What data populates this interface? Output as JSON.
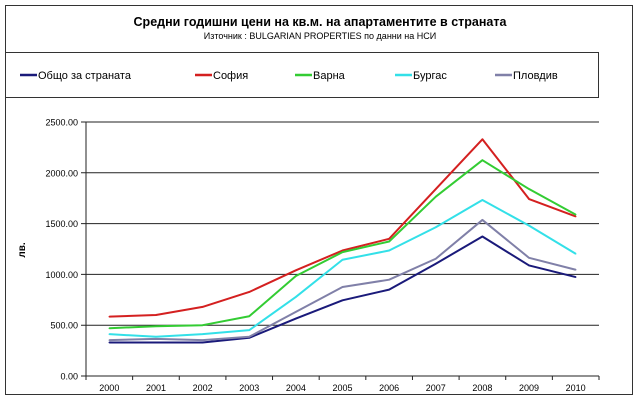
{
  "chart_data": {
    "type": "line",
    "title": "Средни годишни цени на кв.м. на апартаментите в страната",
    "subtitle": "Източник : BULGARIAN PROPERTIES по данни на НСИ",
    "xlabel": "",
    "ylabel": "лв.",
    "ylim": [
      0,
      2500
    ],
    "yticks": [
      "0.00",
      "500.00",
      "1000.00",
      "1500.00",
      "2000.00",
      "2500.00"
    ],
    "grid": true,
    "legend": "top",
    "categories": [
      "2000",
      "2001",
      "2002",
      "2003",
      "2004",
      "2005",
      "2006",
      "2007",
      "2008",
      "2009",
      "2010"
    ],
    "series": [
      {
        "name": "Общо за страната",
        "color": "#1a1a7a",
        "values": [
          330,
          330,
          330,
          376,
          565,
          745,
          850,
          1105,
          1373,
          1088,
          974
        ]
      },
      {
        "name": "София",
        "color": "#d42020",
        "values": [
          584,
          600,
          680,
          827,
          1040,
          1235,
          1350,
          1840,
          2330,
          1742,
          1570
        ]
      },
      {
        "name": "Варна",
        "color": "#33cc33",
        "values": [
          470,
          490,
          500,
          588,
          984,
          1219,
          1324,
          1765,
          2124,
          1840,
          1588
        ]
      },
      {
        "name": "Бургас",
        "color": "#33e0e8",
        "values": [
          412,
          386,
          412,
          451,
          778,
          1144,
          1235,
          1464,
          1732,
          1480,
          1203
        ]
      },
      {
        "name": "Пловдив",
        "color": "#8080a8",
        "values": [
          353,
          366,
          353,
          386,
          631,
          876,
          948,
          1154,
          1536,
          1163,
          1046
        ]
      }
    ]
  }
}
